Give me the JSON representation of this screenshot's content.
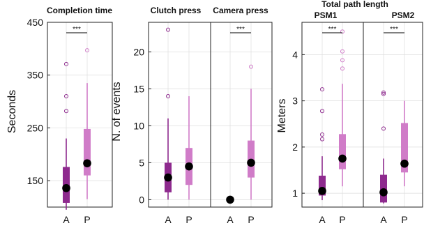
{
  "colors": {
    "A": "#8e2a8e",
    "P": "#d07cc8",
    "median": "#000000",
    "sig": "#000000"
  },
  "chart_data": [
    {
      "type": "box",
      "title": "Completion time",
      "ylabel": "Seconds",
      "ylim": [
        100,
        450
      ],
      "yticks": [
        150,
        250,
        350,
        450
      ],
      "categories": [
        "A",
        "P"
      ],
      "boxes": [
        {
          "name": "A",
          "whisker_low": 95,
          "q1": 108,
          "median": 136,
          "q3": 176,
          "whisker_high": 230,
          "outliers": [
            282,
            310,
            371
          ]
        },
        {
          "name": "P",
          "whisker_low": 115,
          "q1": 160,
          "median": 183,
          "q3": 248,
          "whisker_high": 335,
          "outliers": [
            397
          ]
        }
      ],
      "significance": "***"
    },
    {
      "type": "box",
      "title": "Clutch press",
      "ylabel": "N. of events",
      "ylim": [
        -1,
        24
      ],
      "yticks": [
        0,
        5,
        10,
        15,
        20
      ],
      "categories": [
        "A",
        "P"
      ],
      "boxes": [
        {
          "name": "A",
          "whisker_low": 0,
          "q1": 1,
          "median": 3,
          "q3": 5,
          "whisker_high": 11,
          "outliers": [
            14,
            23
          ]
        },
        {
          "name": "P",
          "whisker_low": 0,
          "q1": 2,
          "median": 4.5,
          "q3": 7,
          "whisker_high": 14,
          "outliers": []
        }
      ]
    },
    {
      "type": "box",
      "title": "Camera press",
      "ylim": [
        -1,
        24
      ],
      "categories": [
        "A",
        "P"
      ],
      "boxes": [
        {
          "name": "A",
          "whisker_low": 0,
          "q1": 0,
          "median": 0,
          "q3": 0,
          "whisker_high": 0,
          "outliers": []
        },
        {
          "name": "P",
          "whisker_low": 0,
          "q1": 3,
          "median": 5,
          "q3": 8,
          "whisker_high": 15,
          "outliers": [
            18
          ]
        }
      ],
      "significance": "***"
    },
    {
      "type": "box",
      "title": "PSM1",
      "group_title": "Total path length",
      "ylabel": "Meters",
      "ylim": [
        0.7,
        4.7
      ],
      "yticks": [
        1,
        2,
        3,
        4
      ],
      "categories": [
        "A",
        "P"
      ],
      "boxes": [
        {
          "name": "A",
          "whisker_low": 0.85,
          "q1": 0.95,
          "median": 1.05,
          "q3": 1.38,
          "whisker_high": 1.8,
          "outliers": [
            2.17,
            2.27,
            2.78,
            3.25
          ]
        },
        {
          "name": "P",
          "whisker_low": 1.15,
          "q1": 1.52,
          "median": 1.75,
          "q3": 2.28,
          "whisker_high": 3.37,
          "outliers": [
            3.7,
            3.88,
            4.07,
            4.5
          ]
        }
      ],
      "significance": "***"
    },
    {
      "type": "box",
      "title": "PSM2",
      "ylim": [
        0.7,
        4.7
      ],
      "categories": [
        "A",
        "P"
      ],
      "boxes": [
        {
          "name": "A",
          "whisker_low": 0.78,
          "q1": 0.8,
          "median": 1.02,
          "q3": 1.4,
          "whisker_high": 1.75,
          "outliers": [
            2.4,
            3.15,
            3.18
          ]
        },
        {
          "name": "P",
          "whisker_low": 1.15,
          "q1": 1.45,
          "median": 1.64,
          "q3": 2.52,
          "whisker_high": 3.0,
          "outliers": []
        }
      ],
      "significance": "***"
    }
  ]
}
